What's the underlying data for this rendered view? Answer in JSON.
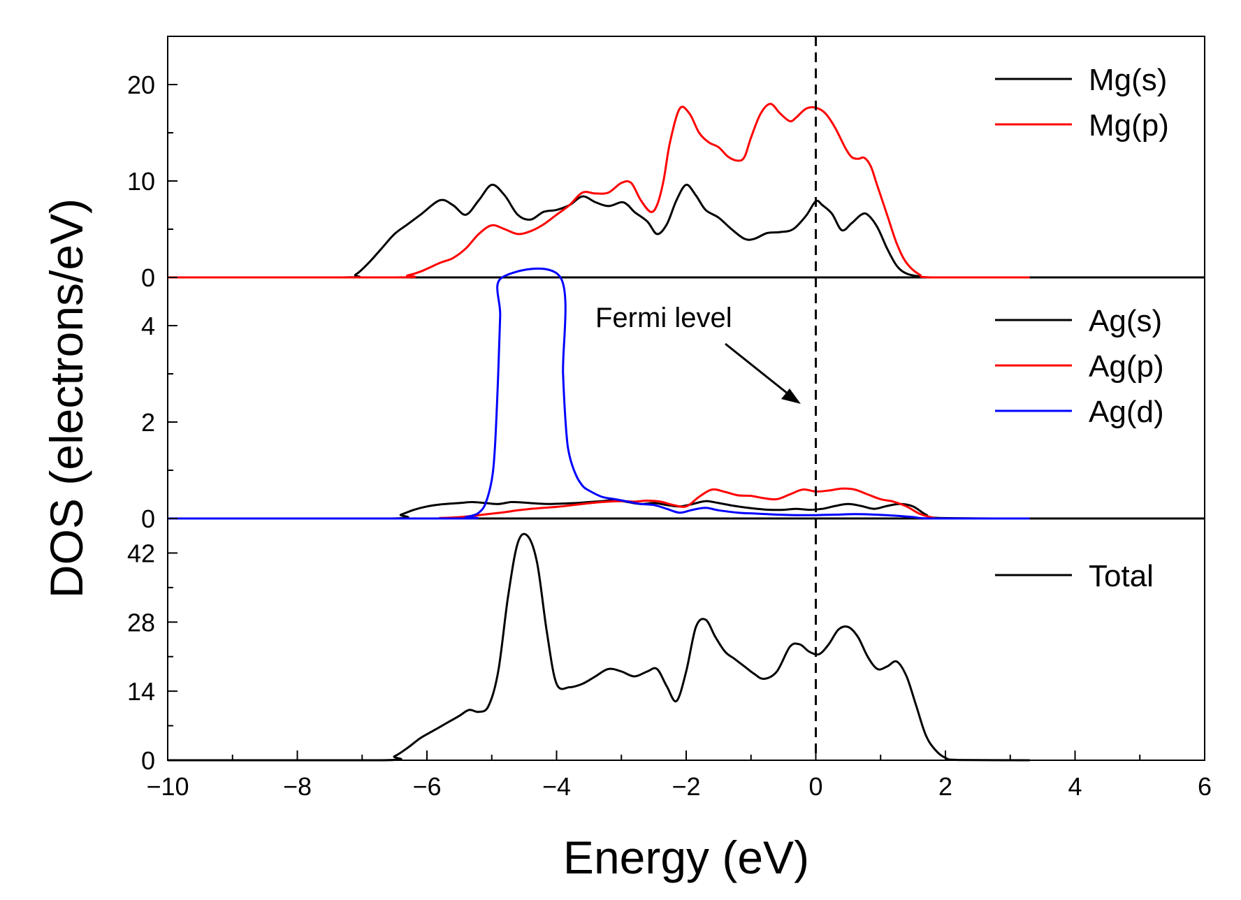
{
  "chart_data": {
    "type": "line",
    "xlabel": "Energy (eV)",
    "ylabel": "DOS (electrons/eV)",
    "xlim": [
      -10,
      6
    ],
    "xticks": [
      "−10",
      "−8",
      "−6",
      "−4",
      "−2",
      "0",
      "2",
      "4",
      "6"
    ],
    "fermi_level_x": 0,
    "annotation": "Fermi level",
    "colors": {
      "s": "#000000",
      "p": "#ff0000",
      "d": "#0000ff",
      "total": "#000000",
      "fermi": "#000000"
    },
    "panels": [
      {
        "name": "mg",
        "ylim": [
          0,
          25
        ],
        "yticks": [
          "0",
          "10",
          "20"
        ],
        "series": [
          {
            "name": "Mg(s)",
            "color": "#000000",
            "x": [
              -10,
              -7.3,
              -7.1,
              -6.9,
              -6.7,
              -6.5,
              -6.3,
              -6.1,
              -5.8,
              -5.6,
              -5.4,
              -5.2,
              -5.0,
              -4.8,
              -4.6,
              -4.4,
              -4.2,
              -4.0,
              -3.8,
              -3.6,
              -3.4,
              -3.2,
              -3.0,
              -2.9,
              -2.8,
              -2.6,
              -2.45,
              -2.3,
              -2.15,
              -2.0,
              -1.85,
              -1.7,
              -1.5,
              -1.3,
              -1.1,
              -0.95,
              -0.75,
              -0.55,
              -0.35,
              -0.15,
              0.0,
              0.1,
              0.25,
              0.4,
              0.55,
              0.7,
              0.8,
              0.95,
              1.1,
              1.25,
              1.4,
              1.6,
              1.8,
              3.3
            ],
            "y": [
              0,
              0,
              0.3,
              1.5,
              3.0,
              4.5,
              5.5,
              6.5,
              8.0,
              7.5,
              6.5,
              8.0,
              9.6,
              8.5,
              6.5,
              6.0,
              6.8,
              7.0,
              7.5,
              8.4,
              7.8,
              7.4,
              7.8,
              7.5,
              6.8,
              5.8,
              4.5,
              5.5,
              8.0,
              9.6,
              8.5,
              7.0,
              6.2,
              5.0,
              4.0,
              4.0,
              4.6,
              4.7,
              5.0,
              6.4,
              7.9,
              7.5,
              6.6,
              4.9,
              5.6,
              6.5,
              6.5,
              5.2,
              3.0,
              1.2,
              0.4,
              0.1,
              0,
              0
            ]
          },
          {
            "name": "Mg(p)",
            "color": "#ff0000",
            "x": [
              -10,
              -6.5,
              -6.3,
              -6.1,
              -5.8,
              -5.6,
              -5.4,
              -5.2,
              -5.0,
              -4.8,
              -4.6,
              -4.4,
              -4.2,
              -4.0,
              -3.8,
              -3.6,
              -3.4,
              -3.2,
              -3.0,
              -2.85,
              -2.7,
              -2.55,
              -2.45,
              -2.35,
              -2.25,
              -2.1,
              -1.95,
              -1.8,
              -1.65,
              -1.5,
              -1.35,
              -1.2,
              -1.1,
              -1.0,
              -0.85,
              -0.7,
              -0.55,
              -0.4,
              -0.3,
              -0.15,
              0.0,
              0.15,
              0.3,
              0.45,
              0.55,
              0.65,
              0.75,
              0.85,
              0.95,
              1.1,
              1.25,
              1.4,
              1.6,
              1.8,
              3.3
            ],
            "y": [
              0,
              0,
              0.2,
              0.6,
              1.5,
              2.0,
              3.0,
              4.5,
              5.4,
              5.0,
              4.5,
              4.8,
              5.5,
              6.5,
              7.5,
              8.8,
              8.7,
              8.8,
              9.8,
              9.8,
              8.0,
              6.8,
              7.5,
              10.0,
              14.0,
              17.5,
              17.0,
              15.0,
              14.0,
              13.5,
              12.5,
              12.1,
              12.5,
              14.5,
              17.0,
              18.0,
              17.0,
              16.2,
              16.6,
              17.5,
              17.6,
              17.0,
              15.5,
              13.5,
              12.5,
              12.3,
              12.4,
              11.5,
              9.5,
              6.5,
              3.5,
              1.5,
              0.3,
              0,
              0
            ]
          }
        ]
      },
      {
        "name": "ag",
        "ylim": [
          0,
          5
        ],
        "yticks": [
          "0",
          "2",
          "4"
        ],
        "series": [
          {
            "name": "Ag(s)",
            "color": "#000000",
            "x": [
              -10,
              -6.6,
              -6.4,
              -6.2,
              -6.0,
              -5.8,
              -5.5,
              -5.3,
              -5.1,
              -4.9,
              -4.7,
              -4.5,
              -4.3,
              -4.1,
              -3.9,
              -3.7,
              -3.5,
              -3.3,
              -3.1,
              -2.9,
              -2.7,
              -2.5,
              -2.3,
              -2.1,
              -1.9,
              -1.7,
              -1.5,
              -1.3,
              -1.1,
              -0.9,
              -0.7,
              -0.5,
              -0.3,
              -0.1,
              0.1,
              0.3,
              0.5,
              0.7,
              0.9,
              1.1,
              1.3,
              1.5,
              1.7,
              1.9,
              3.3
            ],
            "y": [
              0,
              0,
              0.08,
              0.18,
              0.25,
              0.29,
              0.32,
              0.34,
              0.32,
              0.3,
              0.34,
              0.33,
              0.31,
              0.3,
              0.31,
              0.32,
              0.34,
              0.36,
              0.38,
              0.34,
              0.3,
              0.32,
              0.28,
              0.25,
              0.3,
              0.36,
              0.32,
              0.27,
              0.23,
              0.2,
              0.18,
              0.18,
              0.2,
              0.18,
              0.2,
              0.26,
              0.3,
              0.26,
              0.2,
              0.26,
              0.3,
              0.25,
              0.08,
              0.01,
              0
            ]
          },
          {
            "name": "Ag(p)",
            "color": "#ff0000",
            "x": [
              -10,
              -6.0,
              -5.8,
              -5.6,
              -5.4,
              -5.2,
              -5.0,
              -4.8,
              -4.6,
              -4.4,
              -4.2,
              -4.0,
              -3.8,
              -3.6,
              -3.4,
              -3.2,
              -3.0,
              -2.8,
              -2.6,
              -2.4,
              -2.2,
              -2.0,
              -1.8,
              -1.6,
              -1.4,
              -1.2,
              -1.0,
              -0.8,
              -0.6,
              -0.4,
              -0.2,
              0.0,
              0.2,
              0.4,
              0.6,
              0.8,
              1.0,
              1.2,
              1.4,
              1.6,
              1.8,
              2.0,
              3.3
            ],
            "y": [
              0,
              0,
              0.01,
              0.02,
              0.04,
              0.07,
              0.1,
              0.13,
              0.17,
              0.2,
              0.22,
              0.24,
              0.27,
              0.3,
              0.33,
              0.35,
              0.36,
              0.35,
              0.37,
              0.35,
              0.28,
              0.25,
              0.45,
              0.6,
              0.55,
              0.48,
              0.47,
              0.42,
              0.4,
              0.5,
              0.6,
              0.56,
              0.58,
              0.62,
              0.6,
              0.5,
              0.4,
              0.35,
              0.25,
              0.1,
              0.02,
              0,
              0
            ]
          },
          {
            "name": "Ag(d)",
            "color": "#0000ff",
            "x": [
              -10,
              -5.6,
              -5.4,
              -5.3,
              -5.2,
              -5.1,
              -5.0,
              -4.95,
              -4.9,
              -4.87,
              -4.84,
              -3.94,
              -3.9,
              -3.85,
              -3.8,
              -3.7,
              -3.6,
              -3.5,
              -3.3,
              -3.1,
              -2.9,
              -2.7,
              -2.5,
              -2.3,
              -2.1,
              -1.9,
              -1.7,
              -1.5,
              -1.2,
              -0.9,
              -0.6,
              -0.3,
              0.0,
              0.3,
              0.6,
              0.9,
              1.2,
              1.5,
              1.8,
              3.3
            ],
            "y": [
              0,
              0,
              0.03,
              0.06,
              0.12,
              0.3,
              0.8,
              1.5,
              3.0,
              4.2,
              5.0,
              5.0,
              3.0,
              1.8,
              1.3,
              0.9,
              0.68,
              0.58,
              0.45,
              0.4,
              0.35,
              0.3,
              0.28,
              0.2,
              0.12,
              0.18,
              0.22,
              0.17,
              0.12,
              0.1,
              0.08,
              0.07,
              0.07,
              0.08,
              0.09,
              0.08,
              0.06,
              0.03,
              0,
              0
            ]
          }
        ]
      },
      {
        "name": "total",
        "ylim": [
          0,
          49
        ],
        "yticks": [
          "0",
          "14",
          "28",
          "42"
        ],
        "series": [
          {
            "name": "Total",
            "color": "#000000",
            "x": [
              -10,
              -6.7,
              -6.5,
              -6.3,
              -6.1,
              -5.9,
              -5.7,
              -5.5,
              -5.35,
              -5.2,
              -5.05,
              -4.9,
              -4.75,
              -4.6,
              -4.45,
              -4.3,
              -4.15,
              -4.0,
              -3.8,
              -3.6,
              -3.4,
              -3.2,
              -3.0,
              -2.8,
              -2.6,
              -2.45,
              -2.3,
              -2.15,
              -2.0,
              -1.85,
              -1.7,
              -1.55,
              -1.4,
              -1.25,
              -1.1,
              -0.95,
              -0.8,
              -0.6,
              -0.4,
              -0.25,
              -0.1,
              0.05,
              0.2,
              0.35,
              0.5,
              0.65,
              0.8,
              0.95,
              1.1,
              1.25,
              1.4,
              1.55,
              1.7,
              1.85,
              2.0,
              2.2,
              3.3
            ],
            "y": [
              0,
              0,
              0.8,
              2.5,
              4.5,
              6.0,
              7.5,
              9.0,
              10.2,
              9.8,
              11.0,
              18.0,
              33.0,
              44.0,
              45.5,
              40.0,
              26.0,
              15.5,
              14.8,
              15.5,
              17.0,
              18.5,
              18.0,
              17.0,
              18.0,
              18.5,
              15.0,
              12.0,
              18.0,
              27.0,
              28.5,
              25.0,
              22.0,
              20.5,
              19.0,
              17.5,
              16.5,
              18.0,
              23.0,
              23.5,
              22.0,
              21.5,
              23.5,
              26.5,
              27.0,
              25.0,
              21.0,
              18.5,
              19.0,
              20.0,
              17.0,
              11.0,
              5.0,
              2.0,
              0.5,
              0.05,
              0
            ]
          }
        ]
      }
    ]
  }
}
